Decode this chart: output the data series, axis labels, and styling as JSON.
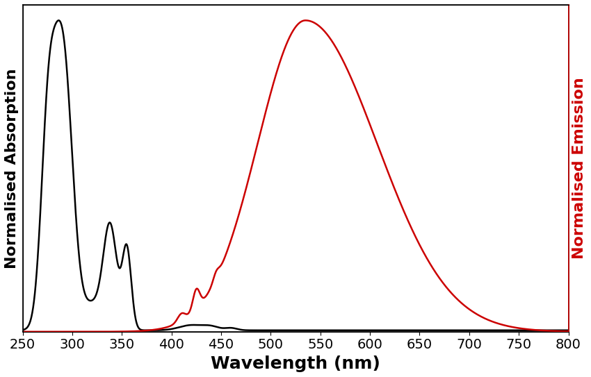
{
  "title": "",
  "xlabel": "Wavelength (nm)",
  "ylabel_left": "Normalised Absorption",
  "ylabel_right": "Normalised Emission",
  "xlim": [
    250,
    800
  ],
  "ylim": [
    0,
    1.05
  ],
  "absorption_color": "#000000",
  "emission_color": "#cc0000",
  "linewidth": 1.8,
  "xlabel_fontsize": 18,
  "ylabel_fontsize": 16,
  "tick_fontsize": 14,
  "background_color": "#ffffff"
}
